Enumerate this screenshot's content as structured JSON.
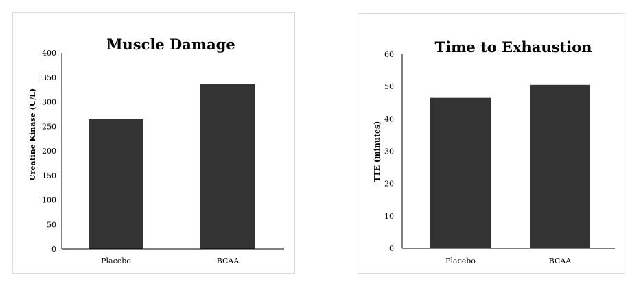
{
  "chart_data": [
    {
      "type": "bar",
      "title": "Muscle Damage",
      "xlabel": "",
      "ylabel": "Creatine Kinase (U/L)",
      "categories": [
        "Placebo",
        "BCAA"
      ],
      "values": [
        265,
        336
      ],
      "ylim": [
        0,
        400
      ],
      "yticks": [
        0,
        50,
        100,
        150,
        200,
        250,
        300,
        350,
        400
      ],
      "bar_color": "#333333",
      "grid": false,
      "legend": "none"
    },
    {
      "type": "bar",
      "title": "Time to Exhaustion",
      "xlabel": "",
      "ylabel": "TTE (minutes)",
      "categories": [
        "Placebo",
        "BCAA"
      ],
      "values": [
        46.5,
        50.5
      ],
      "ylim": [
        0,
        60
      ],
      "yticks": [
        0,
        10,
        20,
        30,
        40,
        50,
        60
      ],
      "bar_color": "#333333",
      "grid": false,
      "legend": "none"
    }
  ]
}
